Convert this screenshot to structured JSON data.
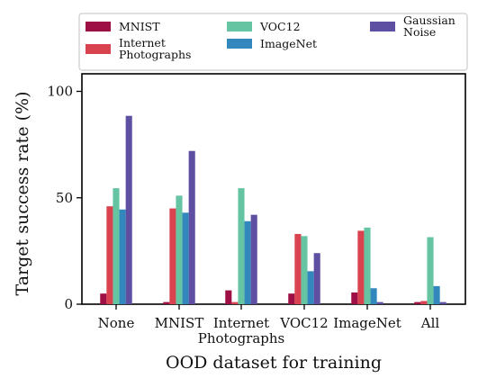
{
  "chart_data": {
    "type": "bar",
    "xlabel": "OOD dataset for training",
    "ylabel": "Target success rate (%)",
    "ylim": [
      0,
      100
    ],
    "yticks": [
      0,
      50,
      100
    ],
    "categories": [
      [
        "None"
      ],
      [
        "MNIST"
      ],
      [
        "Internet",
        "Photographs"
      ],
      [
        "VOC12"
      ],
      [
        "ImageNet"
      ],
      [
        "All"
      ]
    ],
    "series": [
      {
        "name": "MNIST",
        "label_lines": [
          "MNIST"
        ],
        "color": "#9e1045",
        "values": [
          5,
          1,
          6.5,
          5,
          5.5,
          1
        ]
      },
      {
        "name": "Internet Photographs",
        "label_lines": [
          "Internet",
          "Photographs"
        ],
        "color": "#d9434f",
        "values": [
          46,
          45,
          1,
          33,
          34.5,
          1.5
        ]
      },
      {
        "name": "VOC12",
        "label_lines": [
          "VOC12"
        ],
        "color": "#65c4a2",
        "values": [
          54.5,
          51,
          54.5,
          32,
          36,
          31.5
        ]
      },
      {
        "name": "ImageNet",
        "label_lines": [
          "ImageNet"
        ],
        "color": "#3288bd",
        "values": [
          44.5,
          43,
          39,
          15.5,
          7.5,
          8.5
        ]
      },
      {
        "name": "Gaussian Noise",
        "label_lines": [
          "Gaussian",
          "Noise"
        ],
        "color": "#5e4fa2",
        "values": [
          88.5,
          72,
          42,
          24,
          1,
          1
        ]
      }
    ],
    "legend_position": "top",
    "grid": false
  }
}
